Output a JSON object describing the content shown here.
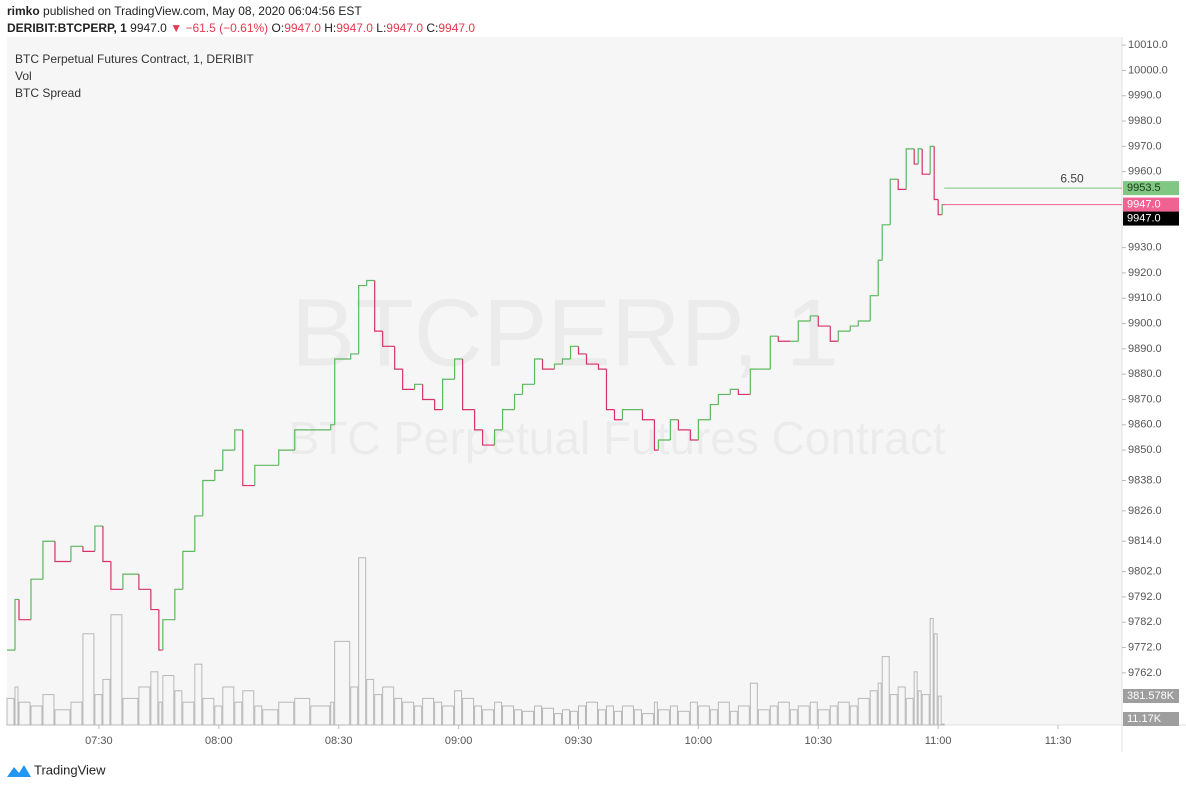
{
  "header": {
    "author": "rimko",
    "byline": "published on TradingView.com, May 08, 2020 06:04:56 EST",
    "symbol": "DERIBIT:BTCPERP, 1",
    "last": "9947.0",
    "change": "−61.5 (−0.61%)",
    "ohlc": [
      {
        "label": "O:",
        "value": "9947.0"
      },
      {
        "label": "H:",
        "value": "9947.0"
      },
      {
        "label": "L:",
        "value": "9947.0"
      },
      {
        "label": "C:",
        "value": "9947.0"
      }
    ]
  },
  "legend": [
    "BTC Perpetual Futures Contract, 1, DERIBIT",
    "Vol",
    "BTC Spread"
  ],
  "watermark": {
    "symbol": "BTCPERP, 1",
    "name": "BTC Perpetual Futures Contract"
  },
  "footer": "TradingView",
  "chart_data": {
    "type": "line",
    "x": [
      "07:07",
      "07:09",
      "07:10",
      "07:13",
      "07:16",
      "07:19",
      "07:23",
      "07:26",
      "07:29",
      "07:31",
      "07:33",
      "07:36",
      "07:40",
      "07:43",
      "07:45",
      "07:46",
      "07:49",
      "07:51",
      "07:54",
      "07:56",
      "07:59",
      "08:01",
      "08:04",
      "08:06",
      "08:09",
      "08:11",
      "08:15",
      "08:19",
      "08:23",
      "08:28",
      "08:29",
      "08:33",
      "08:35",
      "08:37",
      "08:39",
      "08:41",
      "08:44",
      "08:46",
      "08:49",
      "08:51",
      "08:54",
      "08:56",
      "08:59",
      "09:01",
      "09:04",
      "09:06",
      "09:09",
      "09:11",
      "09:14",
      "09:16",
      "09:19",
      "09:21",
      "09:24",
      "09:26",
      "09:28",
      "09:30",
      "09:32",
      "09:35",
      "09:37",
      "09:39",
      "09:41",
      "09:44",
      "09:46",
      "09:49",
      "09:50",
      "09:53",
      "09:55",
      "09:58",
      "10:00",
      "10:03",
      "10:05",
      "10:08",
      "10:10",
      "10:13",
      "10:15",
      "10:18",
      "10:20",
      "10:23",
      "10:25",
      "10:28",
      "10:30",
      "10:33",
      "10:35",
      "10:38",
      "10:40",
      "10:43",
      "10:45",
      "10:46",
      "10:48",
      "10:50",
      "10:52",
      "10:54",
      "10:55",
      "10:56",
      "10:58",
      "10:59",
      "11:00",
      "11:01"
    ],
    "series": [
      {
        "name": "BTC Perpetual Futures Contract, 1, DERIBIT",
        "up_color": "#5cb85c",
        "down_color": "#d6336c",
        "values": [
          9771,
          9791,
          9783,
          9799,
          9814,
          9806,
          9812,
          9810,
          9820,
          9806,
          9795,
          9801,
          9795,
          9787,
          9771,
          9783,
          9795,
          9810,
          9824,
          9838,
          9842,
          9850,
          9858,
          9836,
          9844,
          9844,
          9850,
          9858,
          9858,
          9860,
          9886,
          9888,
          9915,
          9917,
          9897,
          9891,
          9882,
          9874,
          9876,
          9870,
          9866,
          9878,
          9886,
          9866,
          9858,
          9852,
          9858,
          9866,
          9872,
          9876,
          9886,
          9882,
          9884,
          9886,
          9891,
          9888,
          9884,
          9882,
          9866,
          9862,
          9866,
          9866,
          9862,
          9850,
          9854,
          9862,
          9858,
          9854,
          9862,
          9868,
          9872,
          9874,
          9872,
          9882,
          9882,
          9895,
          9893,
          9893,
          9901,
          9903,
          9899,
          9893,
          9897,
          9899,
          9901,
          9911,
          9925,
          9939,
          9957,
          9953,
          9969,
          9963,
          9969,
          9959,
          9970,
          9949,
          9943,
          9947
        ]
      },
      {
        "name": "Vol",
        "color": "#b8b8b8",
        "axis": "y2",
        "values": [
          350000,
          500000,
          300000,
          250000,
          400000,
          200000,
          300000,
          1200000,
          400000,
          600000,
          1450000,
          350000,
          500000,
          700000,
          300000,
          650000,
          450000,
          300000,
          800000,
          350000,
          250000,
          500000,
          300000,
          450000,
          250000,
          200000,
          300000,
          350000,
          250000,
          300000,
          1100000,
          500000,
          2200000,
          600000,
          400000,
          500000,
          350000,
          300000,
          250000,
          350000,
          300000,
          250000,
          450000,
          350000,
          250000,
          200000,
          300000,
          250000,
          200000,
          180000,
          250000,
          220000,
          150000,
          200000,
          180000,
          250000,
          300000,
          200000,
          250000,
          180000,
          250000,
          200000,
          150000,
          300000,
          200000,
          250000,
          180000,
          300000,
          250000,
          200000,
          300000,
          180000,
          250000,
          550000,
          200000,
          250000,
          300000,
          200000,
          250000,
          300000,
          200000,
          250000,
          300000,
          250000,
          350000,
          450000,
          550000,
          900000,
          400000,
          500000,
          350000,
          700000,
          450000,
          400000,
          1400000,
          1200000,
          380000,
          11170
        ]
      }
    ],
    "xlim": [
      "07:07",
      "11:46"
    ],
    "xticks": [
      "07:30",
      "08:00",
      "08:30",
      "09:00",
      "09:30",
      "10:00",
      "10:30",
      "11:00",
      "11:30"
    ],
    "ylim": [
      9741.4,
      10013.2
    ],
    "yticks": [
      {
        "value": 10010,
        "label": "10010.0"
      },
      {
        "value": 10000,
        "label": "10000.0"
      },
      {
        "value": 9990,
        "label": "9990.0"
      },
      {
        "value": 9980,
        "label": "9980.0"
      },
      {
        "value": 9970,
        "label": "9970.0"
      },
      {
        "value": 9960,
        "label": "9960.0"
      },
      {
        "value": 9930,
        "label": "9930.0"
      },
      {
        "value": 9920,
        "label": "9920.0"
      },
      {
        "value": 9910,
        "label": "9910.0"
      },
      {
        "value": 9900,
        "label": "9900.0"
      },
      {
        "value": 9890,
        "label": "9890.0"
      },
      {
        "value": 9880,
        "label": "9880.0"
      },
      {
        "value": 9870,
        "label": "9870.0"
      },
      {
        "value": 9860,
        "label": "9860.0"
      },
      {
        "value": 9850,
        "label": "9850.0"
      },
      {
        "value": 9838,
        "label": "9838.0"
      },
      {
        "value": 9826,
        "label": "9826.0"
      },
      {
        "value": 9814,
        "label": "9814.0"
      },
      {
        "value": 9802,
        "label": "9802.0"
      },
      {
        "value": 9792,
        "label": "9792.0"
      },
      {
        "value": 9782,
        "label": "9782.0"
      },
      {
        "value": 9772,
        "label": "9772.0"
      },
      {
        "value": 9762,
        "label": "9762.0"
      }
    ],
    "y2lim": [
      0,
      9050000
    ],
    "y2tags": [
      {
        "value": 381578,
        "label": "381.578K"
      },
      {
        "value": 11170,
        "label": "11.17K"
      }
    ],
    "price_tag": {
      "value": 9947,
      "label": "9947.0"
    },
    "spread": {
      "label": "6.50",
      "upper": {
        "value": 9953.5,
        "label": "9953.5",
        "color": "#81c784"
      },
      "lower": {
        "value": 9947,
        "label": "9947.0",
        "color": "#f06292"
      }
    },
    "grid": false
  }
}
